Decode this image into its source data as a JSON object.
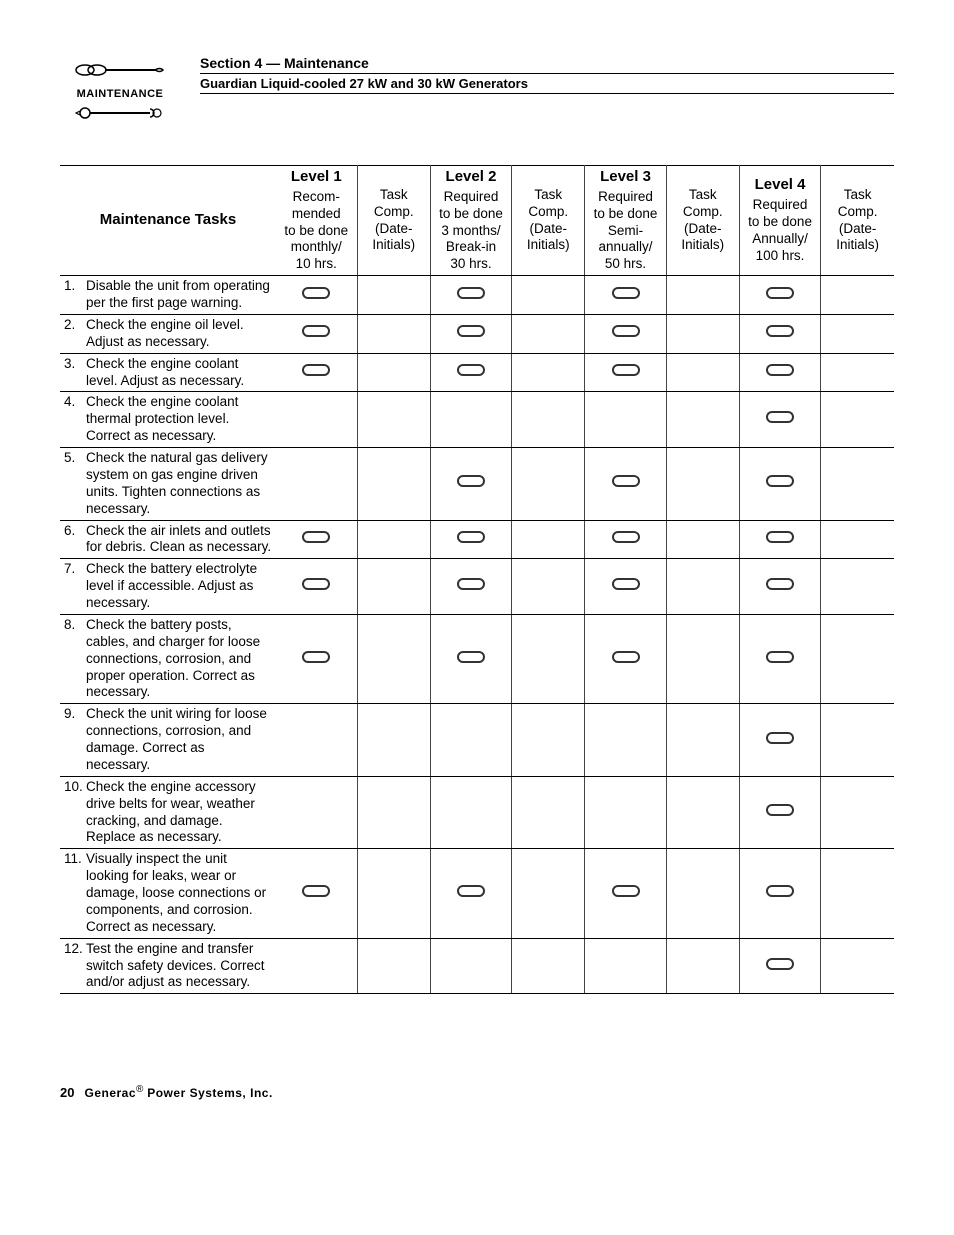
{
  "header": {
    "maintenance_label": "MAINTENANCE",
    "section_title": "Section 4 — Maintenance",
    "subtitle": "Guardian Liquid-cooled 27 kW and 30 kW Generators"
  },
  "table": {
    "tasks_header": "Maintenance Tasks",
    "levels": [
      {
        "title": "Level 1",
        "desc": "Recom-\nmended\nto be done\nmonthly/\n10 hrs."
      },
      {
        "title": "Level 2",
        "desc": "Required\nto be done\n3 months/\nBreak-in\n30 hrs."
      },
      {
        "title": "Level 3",
        "desc": "Required\nto be done\nSemi-\nannually/\n50 hrs."
      },
      {
        "title": "Level 4",
        "desc": "Required\nto be done\nAnnually/\n100 hrs."
      }
    ],
    "comp_header": "Task\nComp.\n(Date-\nInitials)",
    "rows": [
      {
        "n": "1.",
        "text": "Disable the unit from operating per the first page warning.",
        "marks": [
          true,
          true,
          true,
          true
        ]
      },
      {
        "n": "2.",
        "text": "Check the engine oil level. Adjust as necessary.",
        "marks": [
          true,
          true,
          true,
          true
        ]
      },
      {
        "n": "3.",
        "text": "Check the engine coolant level. Adjust as necessary.",
        "marks": [
          true,
          true,
          true,
          true
        ]
      },
      {
        "n": "4.",
        "text": "Check the engine coolant thermal protection level. Correct as necessary.",
        "marks": [
          false,
          false,
          false,
          true
        ]
      },
      {
        "n": "5.",
        "text": "Check the natural gas delivery system on gas engine driven units. Tighten connections as necessary.",
        "marks": [
          false,
          true,
          true,
          true
        ]
      },
      {
        "n": "6.",
        "text": "Check the air inlets and outlets for debris. Clean as necessary.",
        "marks": [
          true,
          true,
          true,
          true
        ]
      },
      {
        "n": "7.",
        "text": "Check the battery electrolyte level if accessible. Adjust as necessary.",
        "marks": [
          true,
          true,
          true,
          true
        ]
      },
      {
        "n": "8.",
        "text": "Check the battery posts, cables, and charger for loose connections, corrosion, and proper operation. Correct as necessary.",
        "marks": [
          true,
          true,
          true,
          true
        ]
      },
      {
        "n": "9.",
        "text": "Check the unit wiring for loose connections, corrosion, and damage. Correct as necessary.",
        "marks": [
          false,
          false,
          false,
          true
        ]
      },
      {
        "n": "10.",
        "text": "Check the engine accessory drive belts for wear, weather cracking, and damage. Replace as necessary.",
        "marks": [
          false,
          false,
          false,
          true
        ]
      },
      {
        "n": "11.",
        "text": "Visually inspect the unit looking for leaks, wear or damage, loose connections or components, and corrosion. Correct as necessary.",
        "marks": [
          true,
          true,
          true,
          true
        ]
      },
      {
        "n": "12.",
        "text": "Test the engine and transfer switch safety devices. Correct and/or adjust as necessary.",
        "marks": [
          false,
          false,
          false,
          true
        ]
      }
    ]
  },
  "footer": {
    "page_num": "20",
    "brand": "Generac",
    "reg": "®",
    "company": " Power Systems, Inc."
  },
  "style": {
    "oval_stroke": "#333333",
    "oval_fill": "none",
    "oval_w": 28,
    "oval_h": 12,
    "oval_stroke_w": 2
  }
}
